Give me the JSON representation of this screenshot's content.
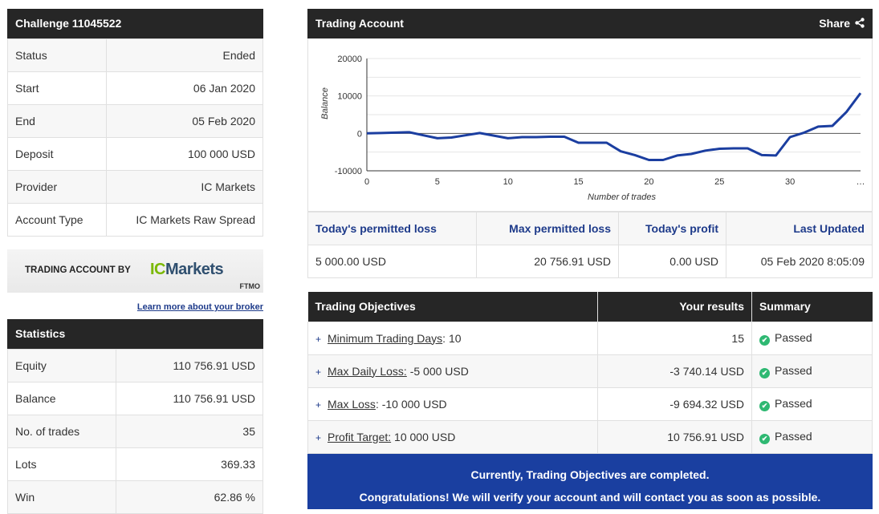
{
  "challenge": {
    "title": "Challenge 11045522",
    "rows": [
      {
        "label": "Status",
        "value": "Ended"
      },
      {
        "label": "Start",
        "value": "06 Jan 2020"
      },
      {
        "label": "End",
        "value": "05 Feb 2020"
      },
      {
        "label": "Deposit",
        "value": "100 000 USD"
      },
      {
        "label": "Provider",
        "value": "IC Markets"
      },
      {
        "label": "Account Type",
        "value": "IC Markets Raw Spread"
      }
    ]
  },
  "broker": {
    "banner_label": "TRADING ACCOUNT BY",
    "logo_ic": "IC",
    "logo_markets": "Markets",
    "ftmo": "FTMO",
    "link": "Learn more about your broker"
  },
  "statistics": {
    "title": "Statistics",
    "rows": [
      {
        "label": "Equity",
        "value": "110 756.91 USD"
      },
      {
        "label": "Balance",
        "value": "110 756.91 USD"
      },
      {
        "label": "No. of trades",
        "value": "35"
      },
      {
        "label": "Lots",
        "value": "369.33"
      },
      {
        "label": "Win",
        "value": "62.86 %"
      }
    ]
  },
  "trading_account": {
    "title": "Trading Account",
    "share_label": "Share"
  },
  "chart_data": {
    "type": "line",
    "xlabel": "Number of trades",
    "ylabel": "Balance",
    "x_ticks": [
      "0",
      "5",
      "10",
      "15",
      "20",
      "25",
      "30",
      "…"
    ],
    "x_tick_values": [
      0,
      5,
      10,
      15,
      20,
      25,
      30,
      35
    ],
    "y_ticks": [
      "20000",
      "10000",
      "0",
      "-10000"
    ],
    "y_tick_values": [
      20000,
      10000,
      0,
      -10000
    ],
    "xlim": [
      0,
      35
    ],
    "ylim": [
      -10000,
      20000
    ],
    "grid": true,
    "line_color": "#1b3ea0",
    "x": [
      0,
      1,
      2,
      3,
      4,
      5,
      6,
      7,
      8,
      9,
      10,
      11,
      12,
      13,
      14,
      15,
      16,
      17,
      18,
      19,
      20,
      21,
      22,
      23,
      24,
      25,
      26,
      27,
      28,
      29,
      30,
      31,
      32,
      33,
      34,
      35
    ],
    "y": [
      0,
      100,
      200,
      300,
      -500,
      -1300,
      -1100,
      -500,
      100,
      -600,
      -1300,
      -1000,
      -1000,
      -900,
      -900,
      -2500,
      -2500,
      -2500,
      -4800,
      -5800,
      -7100,
      -7100,
      -5900,
      -5500,
      -4600,
      -4100,
      -4000,
      -4000,
      -5800,
      -5900,
      -1000,
      200,
      1800,
      2000,
      5700,
      10757
    ]
  },
  "loss_summary": {
    "headers": [
      "Today's permitted loss",
      "Max permitted loss",
      "Today's profit",
      "Last Updated"
    ],
    "values": [
      "5 000.00 USD",
      "20 756.91 USD",
      "0.00 USD",
      "05 Feb 2020 8:05:09"
    ]
  },
  "objectives": {
    "headers": [
      "Trading Objectives",
      "Your results",
      "Summary"
    ],
    "rows": [
      {
        "name": "Minimum Trading Days",
        "suffix": ": 10",
        "result": "15",
        "summary": "Passed"
      },
      {
        "name": "Max Daily Loss:",
        "suffix": " -5 000 USD",
        "result": "-3 740.14 USD",
        "summary": "Passed"
      },
      {
        "name": "Max Loss",
        "suffix": ": -10 000 USD",
        "result": "-9 694.32 USD",
        "summary": "Passed"
      },
      {
        "name": "Profit Target:",
        "suffix": " 10 000 USD",
        "result": "10 756.91 USD",
        "summary": "Passed"
      }
    ],
    "plus_glyph": "+",
    "check_glyph": "✔",
    "status_color": "#2eb872",
    "congrats_line1": "Currently, Trading Objectives are completed.",
    "congrats_line2": "Congratulations! We will verify your account and will contact you as soon as possible."
  }
}
